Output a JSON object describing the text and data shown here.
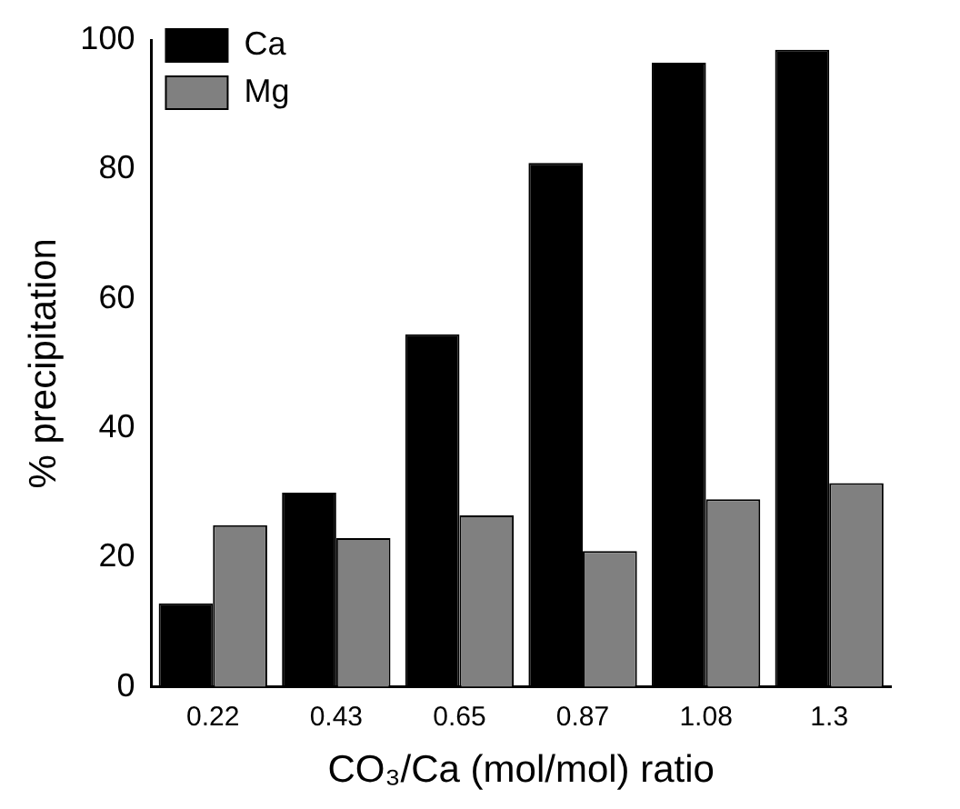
{
  "chart_data": {
    "type": "bar",
    "xlabel": "CO₃/Ca (mol/mol) ratio",
    "ylabel": "% precipitation",
    "categories": [
      "0.22",
      "0.43",
      "0.65",
      "0.87",
      "1.08",
      "1.3"
    ],
    "series": [
      {
        "name": "Ca",
        "color": "#000000",
        "values": [
          12.9,
          30,
          54.5,
          81,
          96.5,
          98.5
        ]
      },
      {
        "name": "Mg",
        "color": "#808080",
        "values": [
          25,
          23,
          26.5,
          21,
          29,
          31.5
        ]
      }
    ],
    "ylim": [
      0,
      100
    ],
    "yticks": [
      0,
      20,
      40,
      60,
      80,
      100
    ],
    "grid": false,
    "legend": "top left"
  }
}
